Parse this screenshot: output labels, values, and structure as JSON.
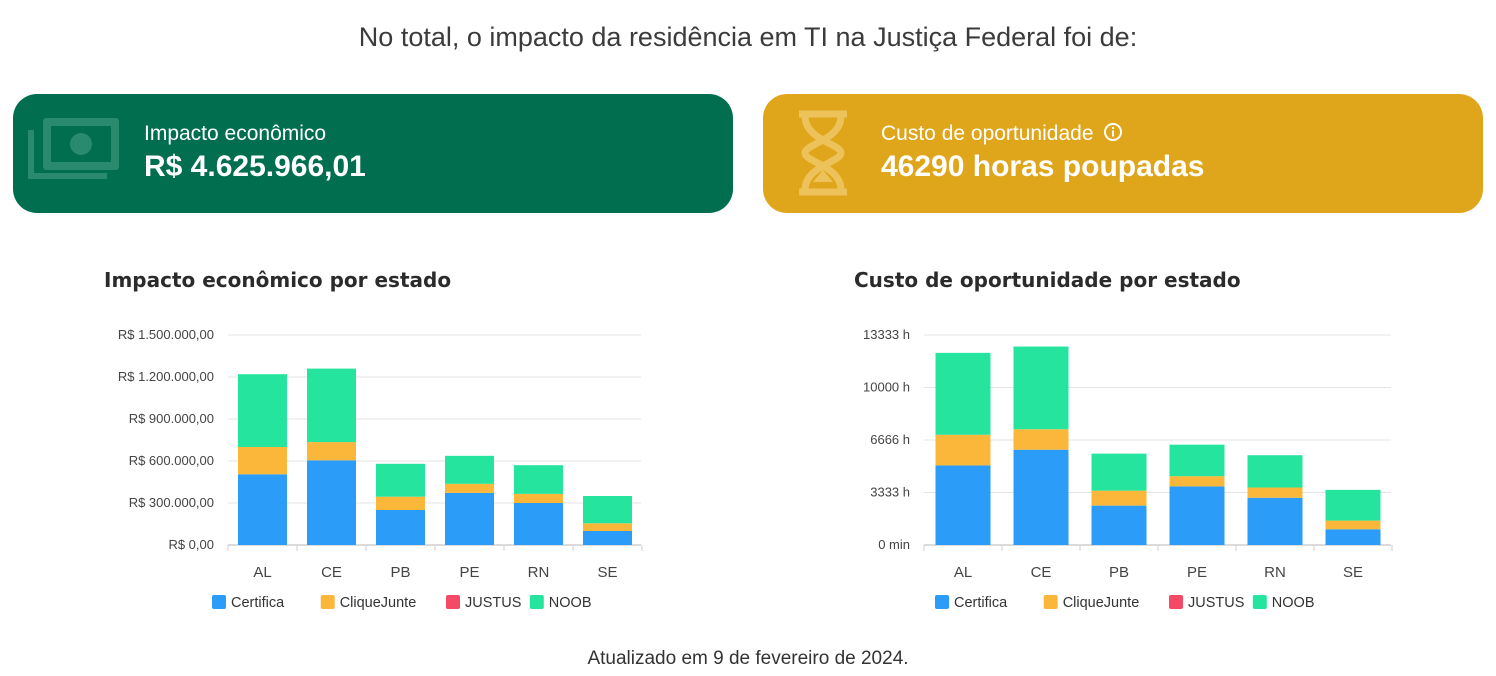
{
  "headline": "No total, o impacto da residência em TI na Justiça Federal foi de:",
  "cards": [
    {
      "label": "Impacto econômico",
      "value": "R$ 4.625.966,01",
      "icon": "money-icon",
      "color": "#016e4f"
    },
    {
      "label": "Custo de oportunidade",
      "value": "46290 horas poupadas",
      "icon": "hourglass-icon",
      "color": "#dfa61c"
    }
  ],
  "footer": "Atualizado em 9 de fevereiro de 2024.",
  "chart_data": [
    {
      "type": "bar",
      "stacked": true,
      "title": "Impacto econômico por estado",
      "categories": [
        "AL",
        "CE",
        "PB",
        "PE",
        "RN",
        "SE"
      ],
      "ylim": [
        0,
        1500000
      ],
      "yticks": [
        0,
        300000,
        600000,
        900000,
        1200000,
        1500000
      ],
      "ytick_labels": [
        "R$ 0,00",
        "R$ 300.000,00",
        "R$ 600.000,00",
        "R$ 900.000,00",
        "R$ 1.200.000,00",
        "R$ 1.500.000,00"
      ],
      "grid": true,
      "legend_position": "bottom",
      "series": [
        {
          "name": "Certifica",
          "color": "#2b9cf7",
          "values": [
            505000,
            605000,
            250000,
            372000,
            300000,
            100000
          ]
        },
        {
          "name": "CliqueJunte",
          "color": "#fbb73a",
          "values": [
            195000,
            130000,
            95000,
            65000,
            65000,
            55000
          ]
        },
        {
          "name": "JUSTUS",
          "color": "#f44a66",
          "values": [
            0,
            0,
            0,
            0,
            0,
            0
          ]
        },
        {
          "name": "NOOB",
          "color": "#25e59e",
          "values": [
            520000,
            525000,
            235000,
            200000,
            205000,
            195000
          ]
        }
      ]
    },
    {
      "type": "bar",
      "stacked": true,
      "title": "Custo de oportunidade por estado",
      "categories": [
        "AL",
        "CE",
        "PB",
        "PE",
        "RN",
        "SE"
      ],
      "ylim": [
        0,
        13333
      ],
      "yticks": [
        0,
        3333,
        6666,
        10000,
        13333
      ],
      "ytick_labels": [
        "0 min",
        "3333 h",
        "6666 h",
        "10000 h",
        "13333 h"
      ],
      "grid": true,
      "legend_position": "bottom",
      "series": [
        {
          "name": "Certifica",
          "color": "#2b9cf7",
          "values": [
            5050,
            6050,
            2500,
            3720,
            3000,
            1000
          ]
        },
        {
          "name": "CliqueJunte",
          "color": "#fbb73a",
          "values": [
            1950,
            1300,
            950,
            650,
            650,
            550
          ]
        },
        {
          "name": "JUSTUS",
          "color": "#f44a66",
          "values": [
            0,
            0,
            0,
            0,
            0,
            0
          ]
        },
        {
          "name": "NOOB",
          "color": "#25e59e",
          "values": [
            5200,
            5250,
            2350,
            2000,
            2050,
            1950
          ]
        }
      ]
    }
  ]
}
